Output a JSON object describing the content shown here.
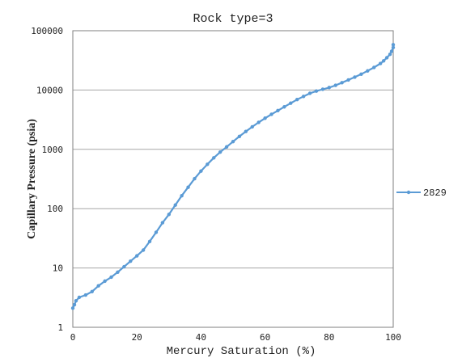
{
  "chart_data": {
    "type": "line",
    "title": "Rock type=3",
    "xlabel": "Mercury Saturation (%)",
    "ylabel": "Capillary Pressure (psia)",
    "xlim": [
      0,
      100
    ],
    "ylim": [
      1,
      100000
    ],
    "yscale": "log",
    "grid": "horizontal",
    "legend_position": "right",
    "x_ticks": [
      "0",
      "20",
      "40",
      "60",
      "80",
      "100"
    ],
    "y_ticks": [
      "1",
      "10",
      "100",
      "1000",
      "10000",
      "100000"
    ],
    "series": [
      {
        "name": "2829",
        "color": "#5b9bd5",
        "x": [
          0,
          0.5,
          1,
          2,
          4,
          6,
          8,
          10,
          12,
          14,
          16,
          18,
          20,
          22,
          24,
          26,
          28,
          30,
          32,
          34,
          36,
          38,
          40,
          42,
          44,
          46,
          48,
          50,
          52,
          54,
          56,
          58,
          60,
          62,
          64,
          66,
          68,
          70,
          72,
          74,
          76,
          78,
          80,
          82,
          84,
          86,
          88,
          90,
          92,
          94,
          96,
          97,
          98,
          99,
          99.5,
          100,
          100
        ],
        "y": [
          2.1,
          2.4,
          2.8,
          3.2,
          3.5,
          4,
          5,
          6,
          7,
          8.5,
          10.5,
          13,
          16,
          20,
          28,
          40,
          58,
          80,
          115,
          165,
          230,
          320,
          430,
          560,
          720,
          900,
          1100,
          1350,
          1650,
          2000,
          2400,
          2850,
          3350,
          3900,
          4500,
          5200,
          6000,
          6900,
          7800,
          8800,
          9600,
          10300,
          11000,
          12000,
          13300,
          14800,
          16500,
          18500,
          21000,
          24000,
          28000,
          31000,
          35000,
          40000,
          45000,
          52000,
          58000
        ]
      }
    ]
  }
}
